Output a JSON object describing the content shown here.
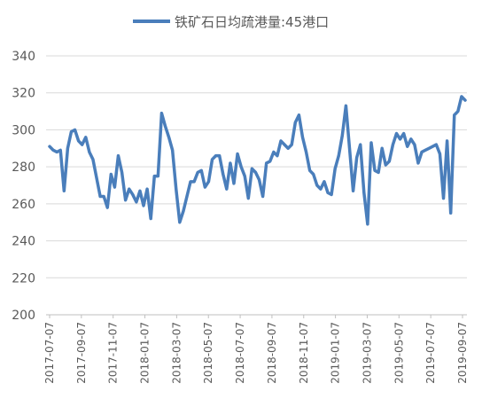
{
  "chart_data": {
    "type": "line",
    "title": "",
    "xlabel": "",
    "ylabel": "",
    "ylim": [
      200,
      340
    ],
    "yticks": [
      200,
      220,
      240,
      260,
      280,
      300,
      320,
      340
    ],
    "x_tick_labels": [
      "2017-07-07",
      "2017-09-07",
      "2017-11-07",
      "2018-01-07",
      "2018-03-07",
      "2018-05-07",
      "2018-07-07",
      "2018-09-07",
      "2018-11-07",
      "2019-01-07",
      "2019-03-07",
      "2019-05-07",
      "2019-07-07",
      "2019-09-07"
    ],
    "grid": "horizontal",
    "legend": "top",
    "colors": {
      "series": "#4a7ebb",
      "grid": "#d9d9d9",
      "text": "#595959"
    },
    "series": [
      {
        "name": "铁矿石日均疏港量:45港口",
        "values": [
          291,
          289,
          288,
          289,
          267,
          290,
          299,
          300,
          294,
          292,
          296,
          288,
          284,
          274,
          264,
          264,
          258,
          276,
          269,
          286,
          277,
          262,
          268,
          265,
          261,
          267,
          259,
          268,
          252,
          275,
          275,
          309,
          302,
          296,
          289,
          268,
          250,
          256,
          264,
          272,
          272,
          277,
          278,
          269,
          272,
          284,
          286,
          286,
          276,
          268,
          282,
          271,
          287,
          280,
          275,
          263,
          279,
          277,
          273,
          264,
          282,
          283,
          288,
          286,
          294,
          292,
          290,
          292,
          304,
          308,
          296,
          288,
          278,
          276,
          270,
          268,
          272,
          266,
          265,
          279,
          286,
          297,
          313,
          290,
          267,
          285,
          292,
          266,
          249,
          293,
          278,
          277,
          290,
          281,
          283,
          292,
          298,
          295,
          298,
          291,
          295,
          292,
          282,
          288,
          289,
          290,
          291,
          292,
          287,
          263,
          294,
          255,
          308,
          310,
          318,
          316
        ]
      }
    ]
  }
}
